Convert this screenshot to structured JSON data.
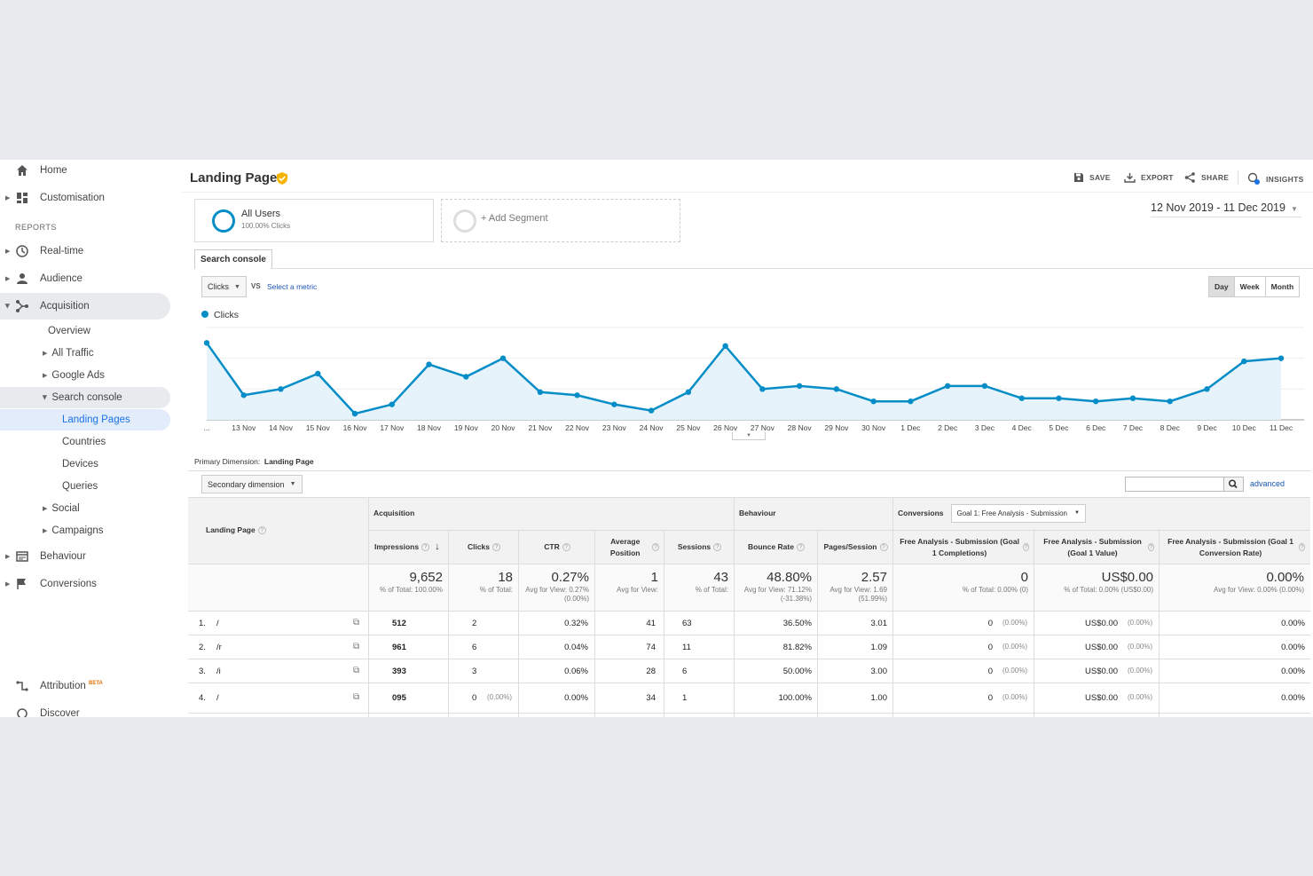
{
  "sidebar": {
    "home": "Home",
    "customisation": "Customisation",
    "reports_label": "REPORTS",
    "realtime": "Real-time",
    "audience": "Audience",
    "acquisition": "Acquisition",
    "acquisition_sub": [
      "Overview",
      "All Traffic",
      "Google Ads",
      "Search console"
    ],
    "search_console_sub": [
      "Landing Pages",
      "Countries",
      "Devices",
      "Queries"
    ],
    "social": "Social",
    "campaigns": "Campaigns",
    "behaviour": "Behaviour",
    "conversions": "Conversions",
    "attribution": "Attribution",
    "attribution_badge": "BETA",
    "discover": "Discover"
  },
  "header": {
    "title": "Landing Pages",
    "save": "SAVE",
    "export": "EXPORT",
    "share": "SHARE",
    "insights": "INSIGHTS"
  },
  "segments": {
    "all_users": "All Users",
    "all_users_sub": "100.00% Clicks",
    "add_segment": "+ Add Segment"
  },
  "date_range": "12 Nov 2019 - 11 Dec 2019",
  "tab": "Search console",
  "metric_select": {
    "value": "Clicks",
    "vs": "VS",
    "select_metric": "Select a metric"
  },
  "granularity": [
    "Day",
    "Week",
    "Month"
  ],
  "granularity_selected": "Day",
  "chart_data": {
    "type": "area",
    "legend": "Clicks",
    "series_color": "#058dc7",
    "x": [
      "12 Nov",
      "13 Nov",
      "14 Nov",
      "15 Nov",
      "16 Nov",
      "17 Nov",
      "18 Nov",
      "19 Nov",
      "20 Nov",
      "21 Nov",
      "22 Nov",
      "23 Nov",
      "24 Nov",
      "25 Nov",
      "26 Nov",
      "27 Nov",
      "28 Nov",
      "29 Nov",
      "30 Nov",
      "1 Dec",
      "2 Dec",
      "3 Dec",
      "4 Dec",
      "5 Dec",
      "6 Dec",
      "7 Dec",
      "8 Dec",
      "9 Dec",
      "10 Dec",
      "11 Dec"
    ],
    "x_labels_shown": [
      "...",
      "13 Nov",
      "14 Nov",
      "15 Nov",
      "16 Nov",
      "17 Nov",
      "18 Nov",
      "19 Nov",
      "20 Nov",
      "21 Nov",
      "22 Nov",
      "23 Nov",
      "24 Nov",
      "25 Nov",
      "26 Nov",
      "27 Nov",
      "28 Nov",
      "29 Nov",
      "30 Nov",
      "1 Dec",
      "2 Dec",
      "3 Dec",
      "4 Dec",
      "5 Dec",
      "6 Dec",
      "7 Dec",
      "8 Dec",
      "9 Dec",
      "10 Dec",
      "11 Dec"
    ],
    "values": [
      25,
      8,
      10,
      15,
      2,
      5,
      18,
      14,
      20,
      9,
      8,
      5,
      3,
      9,
      24,
      10,
      11,
      10,
      6,
      6,
      11,
      11,
      7,
      7,
      6,
      7,
      6,
      10,
      19,
      20
    ],
    "ylim": [
      0,
      30
    ],
    "grid": true
  },
  "table": {
    "primary_dimension_label": "Primary Dimension:",
    "primary_dimension_value": "Landing Page",
    "secondary_dimension": "Secondary dimension",
    "advanced": "advanced",
    "group_acquisition": "Acquisition",
    "group_behaviour": "Behaviour",
    "group_conversions": "Conversions",
    "goal_select": "Goal 1: Free Analysis - Submission",
    "col_landing_page": "Landing Page",
    "columns": [
      "Impressions",
      "Clicks",
      "CTR",
      "Average Position",
      "Sessions",
      "Bounce Rate",
      "Pages/Session",
      "Free Analysis - Submission (Goal 1 Completions)",
      "Free Analysis - Submission (Goal 1 Value)",
      "Free Analysis - Submission (Goal 1 Conversion Rate)"
    ],
    "totals": [
      {
        "big": "9,652",
        "small": "% of Total: 100.00%"
      },
      {
        "big": "18",
        "small": "% of Total:"
      },
      {
        "big": "0.27%",
        "small": "Avg for View: 0.27% (0.00%)"
      },
      {
        "big": "1",
        "small": "Avg for View:"
      },
      {
        "big": "43",
        "small": "% of Total:"
      },
      {
        "big": "48.80%",
        "small": "Avg for View: 71.12% (-31.38%)"
      },
      {
        "big": "2.57",
        "small": "Avg for View: 1.69 (51.99%)"
      },
      {
        "big": "0",
        "small": "% of Total: 0.00% (0)"
      },
      {
        "big": "US$0.00",
        "small": "% of Total: 0.00% (US$0.00)"
      },
      {
        "big": "0.00%",
        "small": "Avg for View: 0.00% (0.00%)"
      }
    ],
    "rows": [
      {
        "idx": "1.",
        "page": "/",
        "impressions": "512",
        "clicks": "2",
        "clicks_pct": "",
        "ctr": "0.32%",
        "position": "41",
        "sessions": "63",
        "bounce": "36.50%",
        "pps": "3.01",
        "goal_comp": "0",
        "goal_comp_pct": "(0.00%)",
        "goal_val": "US$0.00",
        "goal_val_pct": "(0.00%)",
        "conv_rate": "0.00%"
      },
      {
        "idx": "2.",
        "page": "/r",
        "impressions": "961",
        "clicks": "6",
        "clicks_pct": "",
        "ctr": "0.04%",
        "position": "74",
        "sessions": "11",
        "bounce": "81.82%",
        "pps": "1.09",
        "goal_comp": "0",
        "goal_comp_pct": "(0.00%)",
        "goal_val": "US$0.00",
        "goal_val_pct": "(0.00%)",
        "conv_rate": "0.00%"
      },
      {
        "idx": "3.",
        "page": "/i",
        "impressions": "393",
        "clicks": "3",
        "clicks_pct": "",
        "ctr": "0.06%",
        "position": "28",
        "sessions": "6",
        "bounce": "50.00%",
        "pps": "3.00",
        "goal_comp": "0",
        "goal_comp_pct": "(0.00%)",
        "goal_val": "US$0.00",
        "goal_val_pct": "(0.00%)",
        "conv_rate": "0.00%"
      },
      {
        "idx": "4.",
        "page": "/",
        "impressions": "095",
        "clicks": "0",
        "clicks_pct": "(0.00%)",
        "ctr": "0.00%",
        "position": "34",
        "sessions": "1",
        "bounce": "100.00%",
        "pps": "1.00",
        "goal_comp": "0",
        "goal_comp_pct": "(0.00%)",
        "goal_val": "US$0.00",
        "goal_val_pct": "(0.00%)",
        "conv_rate": "0.00%"
      }
    ]
  }
}
